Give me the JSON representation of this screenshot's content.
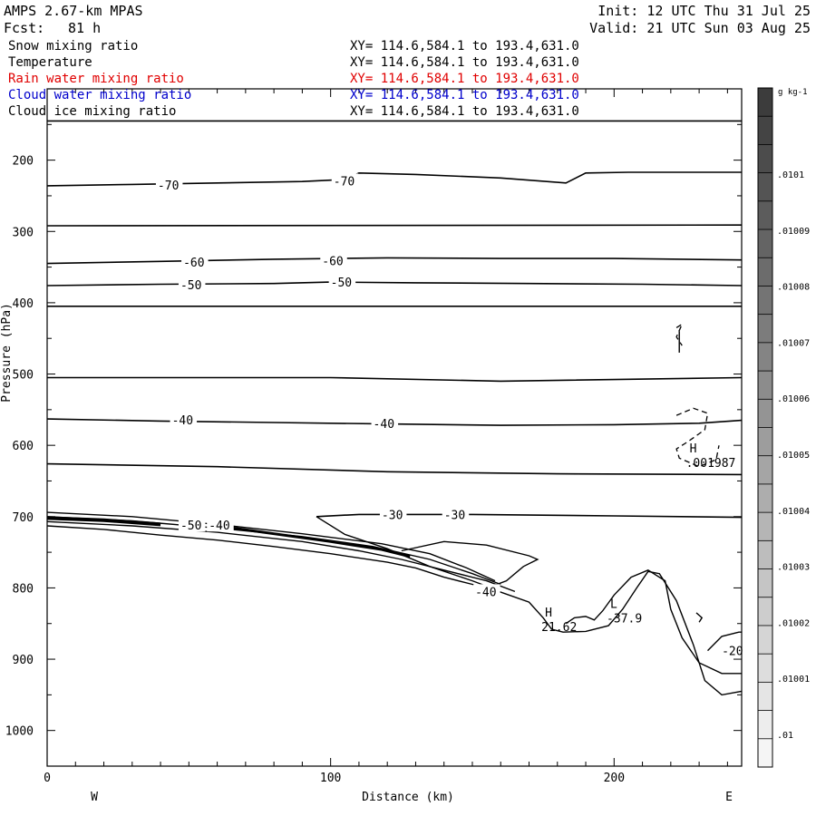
{
  "header": {
    "model": "AMPS 2.67-km MPAS",
    "fcst_label": "Fcst:",
    "fcst_value": "81 h",
    "init": "Init: 12 UTC Thu 31 Jul 25",
    "valid": "Valid: 21 UTC Sun 03 Aug 25"
  },
  "legend": [
    {
      "name": "Snow mixing ratio",
      "range": "XY= 114.6,584.1 to 193.4,631.0",
      "color": "#000000"
    },
    {
      "name": "Temperature",
      "range": "XY= 114.6,584.1 to 193.4,631.0",
      "color": "#000000"
    },
    {
      "name": "Rain water mixing ratio",
      "range": "XY= 114.6,584.1 to 193.4,631.0",
      "color": "#e00000"
    },
    {
      "name": "Cloud water mixing ratio",
      "range": "XY= 114.6,584.1 to 193.4,631.0",
      "color": "#0000cc"
    },
    {
      "name": "Cloud ice mixing ratio",
      "range": "XY= 114.6,584.1 to 193.4,631.0",
      "color": "#000000"
    }
  ],
  "chart_data": {
    "type": "contour-cross-section",
    "xlabel": "Distance (km)",
    "ylabel": "Pressure (hPa)",
    "xlim": [
      0,
      245
    ],
    "ylim": [
      1050,
      100
    ],
    "x_ticks": [
      0,
      100,
      200
    ],
    "y_ticks": [
      100,
      200,
      300,
      400,
      500,
      600,
      700,
      800,
      900,
      1000
    ],
    "x_end_labels": {
      "left": "W",
      "right": "E"
    },
    "isotherms": [
      {
        "label": "-70",
        "points": [
          [
            0,
            236
          ],
          [
            30,
            234
          ],
          [
            60,
            232
          ],
          [
            90,
            230
          ],
          [
            105,
            227
          ],
          [
            110,
            218
          ],
          [
            130,
            220
          ],
          [
            160,
            225
          ],
          [
            183,
            232
          ],
          [
            190,
            218
          ],
          [
            205,
            217
          ],
          [
            230,
            217
          ],
          [
            245,
            217
          ]
        ]
      },
      {
        "label": "-60",
        "points": [
          [
            0,
            345
          ],
          [
            40,
            342
          ],
          [
            80,
            339
          ],
          [
            120,
            337
          ],
          [
            160,
            338
          ],
          [
            200,
            338
          ],
          [
            245,
            340
          ]
        ]
      },
      {
        "label": "-50",
        "points": [
          [
            0,
            376
          ],
          [
            40,
            374
          ],
          [
            80,
            373
          ],
          [
            100,
            371
          ],
          [
            130,
            372
          ],
          [
            170,
            373
          ],
          [
            210,
            374
          ],
          [
            245,
            376
          ]
        ]
      },
      {
        "label": "-40",
        "points": [
          [
            0,
            563
          ],
          [
            40,
            566
          ],
          [
            80,
            568
          ],
          [
            120,
            570
          ],
          [
            160,
            572
          ],
          [
            200,
            571
          ],
          [
            230,
            569
          ],
          [
            245,
            565
          ]
        ]
      },
      {
        "label": "-30",
        "points": [
          [
            95,
            700
          ],
          [
            110,
            697
          ],
          [
            150,
            697
          ],
          [
            200,
            699
          ],
          [
            245,
            701
          ]
        ]
      }
    ],
    "isotherm_labels": [
      {
        "text": "-70",
        "x": 39,
        "y": 235
      },
      {
        "text": "-70",
        "x": 101,
        "y": 229
      },
      {
        "text": "-60",
        "x": 48,
        "y": 343
      },
      {
        "text": "-60",
        "x": 97,
        "y": 341
      },
      {
        "text": "-50",
        "x": 47,
        "y": 375
      },
      {
        "text": "-50",
        "x": 100,
        "y": 371
      },
      {
        "text": "-40",
        "x": 44,
        "y": 564
      },
      {
        "text": "-40",
        "x": 115,
        "y": 569
      },
      {
        "text": "-30",
        "x": 118,
        "y": 697
      },
      {
        "text": "-30",
        "x": 140,
        "y": 697
      },
      {
        "text": "-50",
        "x": 47,
        "y": 712
      },
      {
        "text": "-40",
        "x": 57,
        "y": 712
      },
      {
        "text": "-40",
        "x": 151,
        "y": 805
      },
      {
        "text": "-20",
        "x": 238,
        "y": 888
      }
    ],
    "extrema": [
      {
        "type": "H",
        "value": "21.62",
        "x": 175,
        "y": 840
      },
      {
        "type": "L",
        "value": "-37.9",
        "x": 198,
        "y": 828
      },
      {
        "type": "H",
        "value": ".001987",
        "x": 226,
        "y": 610
      }
    ],
    "colorbar": {
      "unit": "g kg-1",
      "labels": [
        ".0101",
        ".01009",
        ".01008",
        ".01007",
        ".01006",
        ".01005",
        ".01004",
        ".01003",
        ".01002",
        ".01001",
        ".01"
      ]
    }
  }
}
